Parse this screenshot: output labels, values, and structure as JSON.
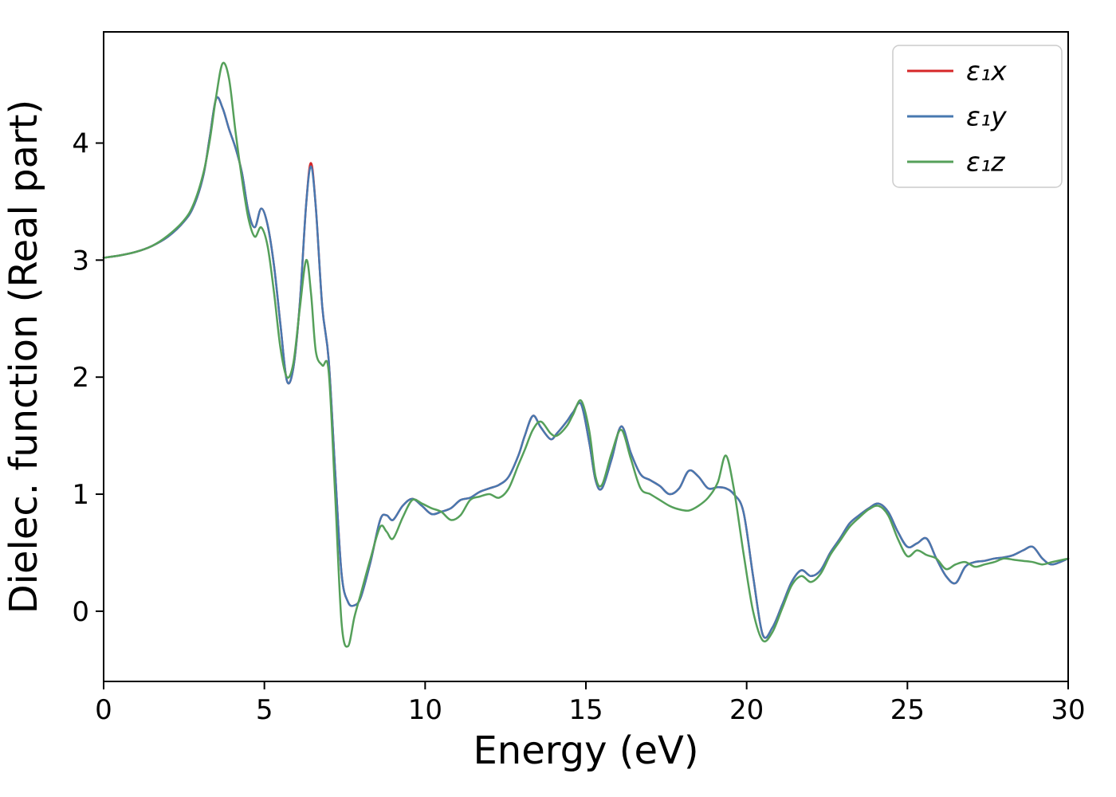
{
  "chart_data": {
    "type": "line",
    "title": "",
    "xlabel": "Energy (eV)",
    "ylabel": "Dielec. function (Real part)",
    "xlim": [
      0,
      30
    ],
    "ylim": [
      -0.6,
      4.95
    ],
    "xticks": [
      0,
      5,
      10,
      15,
      20,
      25,
      30
    ],
    "yticks": [
      0,
      1,
      2,
      3,
      4
    ],
    "grid": false,
    "legend_position": "upper right",
    "x": [
      0,
      0.5,
      1,
      1.5,
      2,
      2.5,
      2.8,
      3.1,
      3.3,
      3.5,
      3.7,
      3.9,
      4.1,
      4.3,
      4.5,
      4.7,
      4.9,
      5.1,
      5.3,
      5.5,
      5.7,
      5.9,
      6.1,
      6.3,
      6.45,
      6.6,
      6.8,
      7.0,
      7.2,
      7.4,
      7.6,
      7.8,
      8.0,
      8.3,
      8.6,
      8.8,
      9.0,
      9.3,
      9.6,
      9.9,
      10.2,
      10.5,
      10.8,
      11.1,
      11.4,
      11.7,
      12.0,
      12.3,
      12.6,
      12.9,
      13.1,
      13.35,
      13.6,
      13.9,
      14.1,
      14.4,
      14.6,
      14.85,
      15.1,
      15.3,
      15.5,
      15.8,
      16.1,
      16.4,
      16.7,
      17.0,
      17.3,
      17.6,
      17.9,
      18.2,
      18.5,
      18.8,
      19.1,
      19.35,
      19.6,
      19.9,
      20.2,
      20.5,
      20.8,
      21.1,
      21.4,
      21.7,
      22.0,
      22.3,
      22.6,
      22.9,
      23.2,
      23.5,
      23.8,
      24.1,
      24.4,
      24.7,
      25.0,
      25.3,
      25.6,
      25.9,
      26.2,
      26.5,
      26.8,
      27.1,
      27.4,
      27.7,
      28.0,
      28.3,
      28.6,
      28.9,
      29.2,
      29.5,
      30.0
    ],
    "series": [
      {
        "name": "ε₁x",
        "color": "#d62728",
        "values": [
          3.02,
          3.04,
          3.07,
          3.12,
          3.2,
          3.33,
          3.46,
          3.72,
          4.05,
          4.38,
          4.3,
          4.12,
          3.96,
          3.75,
          3.42,
          3.28,
          3.44,
          3.3,
          2.95,
          2.45,
          1.97,
          2.08,
          2.62,
          3.48,
          3.83,
          3.45,
          2.6,
          2.15,
          1.2,
          0.32,
          0.08,
          0.05,
          0.12,
          0.42,
          0.78,
          0.82,
          0.78,
          0.9,
          0.96,
          0.9,
          0.83,
          0.85,
          0.88,
          0.95,
          0.97,
          1.02,
          1.05,
          1.08,
          1.15,
          1.33,
          1.5,
          1.67,
          1.57,
          1.47,
          1.52,
          1.62,
          1.7,
          1.77,
          1.45,
          1.12,
          1.05,
          1.3,
          1.58,
          1.35,
          1.17,
          1.12,
          1.07,
          1.0,
          1.05,
          1.2,
          1.15,
          1.05,
          1.06,
          1.05,
          1.0,
          0.85,
          0.3,
          -0.2,
          -0.14,
          0.05,
          0.25,
          0.35,
          0.3,
          0.35,
          0.5,
          0.62,
          0.75,
          0.82,
          0.88,
          0.92,
          0.85,
          0.68,
          0.55,
          0.58,
          0.62,
          0.45,
          0.3,
          0.24,
          0.38,
          0.42,
          0.43,
          0.45,
          0.46,
          0.48,
          0.52,
          0.55,
          0.45,
          0.4,
          0.45
        ]
      },
      {
        "name": "ε₁y",
        "color": "#4878b0",
        "values": [
          3.02,
          3.04,
          3.07,
          3.12,
          3.2,
          3.33,
          3.46,
          3.72,
          4.05,
          4.38,
          4.3,
          4.12,
          3.96,
          3.75,
          3.42,
          3.28,
          3.44,
          3.3,
          2.95,
          2.45,
          1.97,
          2.08,
          2.62,
          3.48,
          3.8,
          3.45,
          2.6,
          2.15,
          1.2,
          0.32,
          0.08,
          0.05,
          0.12,
          0.42,
          0.78,
          0.82,
          0.78,
          0.9,
          0.96,
          0.9,
          0.83,
          0.85,
          0.88,
          0.95,
          0.97,
          1.02,
          1.05,
          1.08,
          1.15,
          1.33,
          1.5,
          1.67,
          1.57,
          1.47,
          1.52,
          1.62,
          1.7,
          1.77,
          1.45,
          1.12,
          1.05,
          1.3,
          1.58,
          1.35,
          1.17,
          1.12,
          1.07,
          1.0,
          1.05,
          1.2,
          1.15,
          1.05,
          1.06,
          1.05,
          1.0,
          0.85,
          0.3,
          -0.2,
          -0.14,
          0.05,
          0.25,
          0.35,
          0.3,
          0.35,
          0.5,
          0.62,
          0.75,
          0.82,
          0.88,
          0.92,
          0.85,
          0.68,
          0.55,
          0.58,
          0.62,
          0.45,
          0.3,
          0.24,
          0.38,
          0.42,
          0.43,
          0.45,
          0.46,
          0.48,
          0.52,
          0.55,
          0.45,
          0.4,
          0.45
        ]
      },
      {
        "name": "ε₁z",
        "color": "#55a05a",
        "values": [
          3.02,
          3.04,
          3.07,
          3.12,
          3.21,
          3.34,
          3.48,
          3.74,
          4.02,
          4.4,
          4.68,
          4.55,
          4.1,
          3.7,
          3.36,
          3.2,
          3.28,
          3.12,
          2.72,
          2.25,
          2.0,
          2.12,
          2.58,
          3.0,
          2.72,
          2.22,
          2.1,
          2.05,
          1.0,
          -0.1,
          -0.3,
          -0.05,
          0.15,
          0.45,
          0.72,
          0.68,
          0.62,
          0.8,
          0.95,
          0.92,
          0.88,
          0.85,
          0.78,
          0.82,
          0.95,
          0.98,
          1.0,
          0.97,
          1.05,
          1.25,
          1.38,
          1.55,
          1.62,
          1.52,
          1.5,
          1.58,
          1.68,
          1.8,
          1.55,
          1.15,
          1.08,
          1.35,
          1.55,
          1.3,
          1.05,
          1.0,
          0.95,
          0.9,
          0.87,
          0.86,
          0.9,
          0.97,
          1.1,
          1.33,
          1.05,
          0.5,
          0.0,
          -0.25,
          -0.18,
          0.02,
          0.22,
          0.3,
          0.25,
          0.32,
          0.48,
          0.6,
          0.72,
          0.8,
          0.87,
          0.9,
          0.82,
          0.62,
          0.47,
          0.52,
          0.48,
          0.45,
          0.36,
          0.4,
          0.42,
          0.38,
          0.4,
          0.42,
          0.45,
          0.44,
          0.43,
          0.42,
          0.4,
          0.42,
          0.45
        ]
      }
    ]
  }
}
